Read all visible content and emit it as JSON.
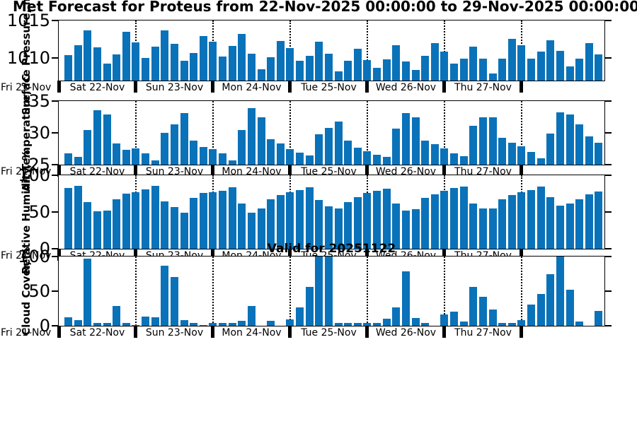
{
  "title": "Met Forecast for Proteus from 22-Nov-2025 00:00:00 to 29-Nov-2025 00:00:00",
  "annotation": "Valid for 20251122",
  "x_axis": {
    "first_label": "Fri 21-Nov",
    "day_labels": [
      "Sat 22-Nov",
      "Sun 23-Nov",
      "Mon 24-Nov",
      "Tue 25-Nov",
      "Wed 26-Nov",
      "Thu 27-Nov"
    ],
    "interval_hours": 3
  },
  "bar_color": "#0a72b9",
  "chart_data": [
    {
      "id": "surface-pressure",
      "type": "bar",
      "ylabel": "Surface Pressure, mb",
      "yticks": [
        1010,
        1015
      ],
      "ylim": [
        1007,
        1015
      ],
      "values": [
        1010.4,
        1011.7,
        1013.7,
        1011.4,
        1009.3,
        1010.5,
        1013.5,
        1012.1,
        1010.0,
        1011.5,
        1013.7,
        1011.9,
        1009.6,
        1010.7,
        1012.9,
        1012.2,
        1010.2,
        1011.6,
        1013.2,
        1010.6,
        1008.5,
        1010.1,
        1012.3,
        1011.3,
        1009.6,
        1010.3,
        1012.2,
        1010.6,
        1008.2,
        1009.6,
        1011.2,
        1009.7,
        1008.7,
        1009.8,
        1011.7,
        1009.5,
        1008.4,
        1010.3,
        1012.0,
        1010.9,
        1009.3,
        1009.9,
        1011.5,
        1009.9,
        1007.9,
        1009.9,
        1012.6,
        1011.7,
        1009.9,
        1010.9,
        1012.4,
        1011.0,
        1008.9,
        1009.9,
        1012.0,
        1010.5
      ]
    },
    {
      "id": "air-temperature",
      "type": "bar",
      "ylabel": "Air Temperature, °C",
      "yticks": [
        25,
        30,
        35
      ],
      "ylim": [
        25,
        35
      ],
      "values": [
        26.8,
        26.2,
        30.4,
        33.6,
        32.9,
        28.3,
        27.3,
        27.6,
        26.8,
        25.7,
        30.0,
        31.3,
        33.1,
        28.8,
        27.8,
        27.4,
        26.8,
        25.7,
        30.5,
        33.9,
        32.4,
        29.0,
        28.3,
        27.5,
        26.9,
        26.4,
        29.8,
        30.8,
        31.8,
        28.8,
        27.7,
        27.1,
        26.6,
        26.2,
        30.7,
        33.1,
        32.4,
        28.8,
        28.2,
        27.6,
        26.8,
        26.3,
        31.1,
        32.4,
        32.4,
        29.2,
        28.5,
        27.9,
        27.0,
        26.0,
        29.9,
        33.2,
        32.9,
        31.3,
        29.4,
        28.4
      ]
    },
    {
      "id": "relative-humidity",
      "type": "bar",
      "ylabel": "Relative Humidity, %",
      "yticks": [
        0,
        50,
        100
      ],
      "ylim": [
        0,
        100
      ],
      "values": [
        83,
        86,
        63,
        51,
        52,
        67,
        75,
        77,
        81,
        86,
        64,
        57,
        49,
        69,
        76,
        77,
        79,
        84,
        62,
        49,
        55,
        67,
        73,
        77,
        80,
        84,
        66,
        58,
        55,
        63,
        70,
        76,
        79,
        82,
        62,
        52,
        54,
        69,
        74,
        79,
        83,
        85,
        62,
        55,
        55,
        67,
        73,
        77,
        80,
        85,
        70,
        59,
        62,
        67,
        74,
        78
      ]
    },
    {
      "id": "cloud-cover",
      "type": "bar",
      "ylabel": "Cloud Cover, %",
      "yticks": [
        0,
        50,
        100
      ],
      "ylim": [
        0,
        100
      ],
      "values": [
        12,
        8,
        97,
        4,
        4,
        29,
        4,
        1,
        13,
        12,
        87,
        70,
        8,
        4,
        1,
        4,
        4,
        4,
        7,
        29,
        0,
        7,
        0,
        9,
        27,
        56,
        100,
        100,
        4,
        4,
        4,
        4,
        4,
        10,
        27,
        79,
        11,
        4,
        0,
        16,
        20,
        6,
        56,
        42,
        23,
        4,
        4,
        8,
        31,
        46,
        74,
        100,
        52,
        6,
        0,
        21
      ]
    }
  ]
}
